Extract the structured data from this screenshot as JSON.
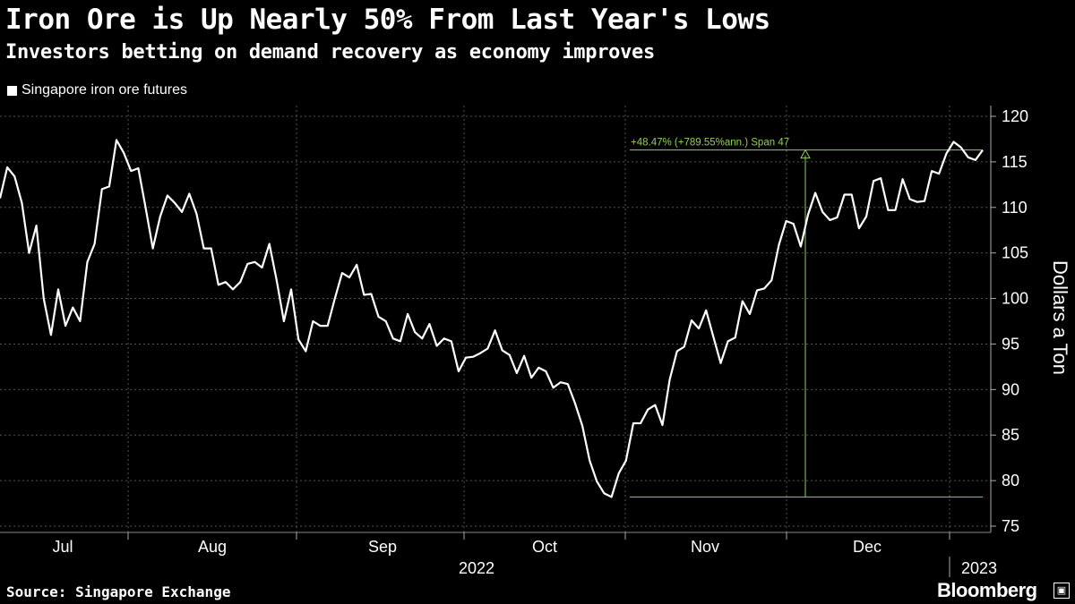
{
  "header": {
    "title": "Iron Ore is Up Nearly 50% From Last Year's Lows",
    "subtitle": "Investors betting on demand recovery as economy improves"
  },
  "legend": {
    "label": "Singapore iron ore futures"
  },
  "footer": {
    "source": "Source: Singapore Exchange",
    "brand": "Bloomberg",
    "brand_icon": "terminal-icon"
  },
  "colors": {
    "background": "#000000",
    "line": "#ffffff",
    "annotation": "#8ed05a",
    "grid": "#555555"
  },
  "chart_data": {
    "type": "line",
    "title": "Iron Ore is Up Nearly 50% From Last Year's Lows",
    "subtitle": "Investors betting on demand recovery as economy improves",
    "xlabel": "",
    "ylabel": "Dollars a Ton",
    "ylim": [
      75,
      122
    ],
    "y_ticks": [
      75,
      80,
      85,
      90,
      95,
      100,
      105,
      110,
      115,
      120
    ],
    "x_month_labels": [
      "Jul",
      "Aug",
      "Sep",
      "Oct",
      "Nov",
      "Dec"
    ],
    "x_year_labels": [
      "2022",
      "2023"
    ],
    "grid": true,
    "legend_position": "top-left",
    "series": [
      {
        "name": "Singapore iron ore futures",
        "values": [
          111.0,
          114.4,
          113.4,
          110.5,
          105.0,
          108.0,
          100.0,
          96.0,
          101.0,
          97.0,
          99.0,
          97.5,
          104.0,
          106.0,
          112.0,
          112.3,
          117.4,
          116.0,
          114.0,
          114.3,
          110.0,
          105.5,
          109.0,
          111.3,
          110.5,
          109.5,
          111.5,
          109.3,
          105.5,
          105.5,
          101.5,
          101.8,
          101.0,
          101.8,
          103.8,
          104.0,
          103.4,
          106.0,
          102.0,
          97.5,
          101.0,
          95.5,
          94.2,
          97.5,
          97.0,
          97.0,
          100.0,
          102.8,
          102.3,
          103.7,
          100.4,
          100.5,
          98.0,
          97.5,
          95.6,
          95.3,
          98.3,
          96.3,
          95.6,
          97.2,
          94.8,
          95.6,
          95.3,
          92.0,
          93.5,
          93.6,
          94.0,
          94.5,
          96.5,
          94.3,
          93.8,
          91.8,
          93.7,
          91.3,
          92.4,
          92.0,
          90.2,
          90.8,
          90.6,
          88.5,
          86.0,
          82.2,
          79.9,
          78.6,
          78.2,
          80.8,
          82.2,
          86.3,
          86.3,
          87.8,
          88.3,
          86.1,
          91.1,
          94.2,
          94.7,
          97.6,
          96.7,
          98.7,
          95.8,
          92.9,
          95.3,
          95.7,
          99.7,
          98.3,
          100.9,
          101.1,
          102.0,
          105.9,
          108.5,
          108.2,
          105.7,
          109.2,
          111.6,
          109.5,
          108.6,
          108.9,
          111.4,
          111.4,
          107.7,
          109.0,
          112.9,
          113.2,
          109.7,
          109.7,
          113.1,
          110.9,
          110.6,
          110.7,
          114.0,
          113.7,
          115.9,
          117.2,
          116.6,
          115.5,
          115.2,
          116.3
        ]
      }
    ],
    "annotation": {
      "text": "+48.47% (+789.55%ann.) Span 47",
      "low": 78.2,
      "high": 116.3,
      "change_pct": 48.47,
      "annualized_pct": 789.55,
      "span": 47
    }
  }
}
